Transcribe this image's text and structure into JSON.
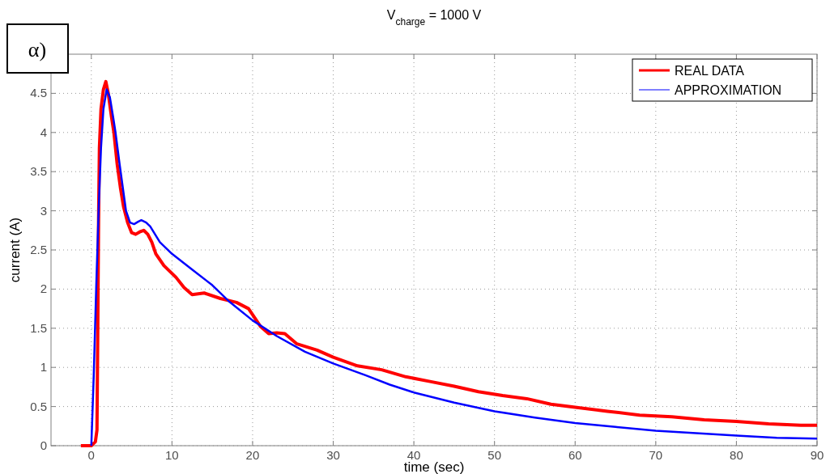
{
  "chart_data": {
    "type": "line",
    "title": "V$_{charge}$ = 1000 V",
    "xlabel": "time (sec)",
    "ylabel": "current (A)",
    "annotations": [
      "α)"
    ],
    "xlim": [
      -5,
      90
    ],
    "xticks": [
      0,
      10,
      20,
      30,
      40,
      50,
      60,
      70,
      80,
      90
    ],
    "ylim": [
      0,
      5
    ],
    "yticks": [
      0,
      0.5,
      1,
      1.5,
      2,
      2.5,
      3,
      3.5,
      4,
      4.5
    ],
    "grid": true,
    "legend": "top right",
    "series": [
      {
        "name": "REAL DATA",
        "color": "#ff0000",
        "x": [
          -1.3,
          0,
          0.5,
          0.7,
          0.8,
          0.9,
          1.0,
          1.2,
          1.5,
          1.8,
          2.1,
          2.5,
          2.8,
          3.2,
          3.6,
          4.0,
          4.5,
          5.0,
          5.5,
          6.0,
          6.5,
          7.0,
          7.5,
          8.0,
          9.0,
          10.5,
          11.5,
          12.5,
          14,
          16,
          18,
          19.5,
          21,
          22,
          23,
          24,
          25.5,
          28,
          30,
          33,
          36,
          39,
          42,
          45,
          48,
          51,
          54,
          57,
          60,
          64,
          68,
          72,
          76,
          80,
          84,
          88,
          90
        ],
        "values": [
          0,
          0,
          0.05,
          0.2,
          1.5,
          2.9,
          3.8,
          4.3,
          4.55,
          4.65,
          4.5,
          4.2,
          4.0,
          3.6,
          3.3,
          3.05,
          2.85,
          2.72,
          2.7,
          2.73,
          2.75,
          2.7,
          2.6,
          2.45,
          2.3,
          2.15,
          2.02,
          1.93,
          1.95,
          1.88,
          1.83,
          1.75,
          1.52,
          1.43,
          1.44,
          1.43,
          1.3,
          1.22,
          1.13,
          1.02,
          0.97,
          0.88,
          0.82,
          0.76,
          0.69,
          0.64,
          0.6,
          0.53,
          0.49,
          0.44,
          0.39,
          0.37,
          0.33,
          0.31,
          0.28,
          0.26,
          0.26
        ]
      },
      {
        "name": "APPROXIMATION",
        "color": "#0000ff",
        "x": [
          0,
          0.3,
          0.6,
          0.9,
          1.2,
          1.5,
          1.9,
          2.3,
          2.7,
          3.0,
          3.5,
          3.9,
          4.3,
          4.8,
          5.3,
          5.8,
          6.2,
          6.8,
          7.3,
          8.5,
          10,
          12.5,
          15,
          17,
          20,
          23,
          26.5,
          30,
          34,
          37,
          40,
          45,
          50,
          55,
          60,
          65,
          70,
          75,
          80,
          85,
          90
        ],
        "values": [
          0,
          0.9,
          2.0,
          3.0,
          3.8,
          4.3,
          4.55,
          4.45,
          4.2,
          4.0,
          3.6,
          3.3,
          3.0,
          2.85,
          2.83,
          2.86,
          2.88,
          2.85,
          2.8,
          2.6,
          2.45,
          2.25,
          2.05,
          1.85,
          1.6,
          1.4,
          1.2,
          1.05,
          0.9,
          0.78,
          0.68,
          0.55,
          0.44,
          0.36,
          0.29,
          0.24,
          0.19,
          0.16,
          0.13,
          0.1,
          0.09
        ]
      }
    ]
  }
}
